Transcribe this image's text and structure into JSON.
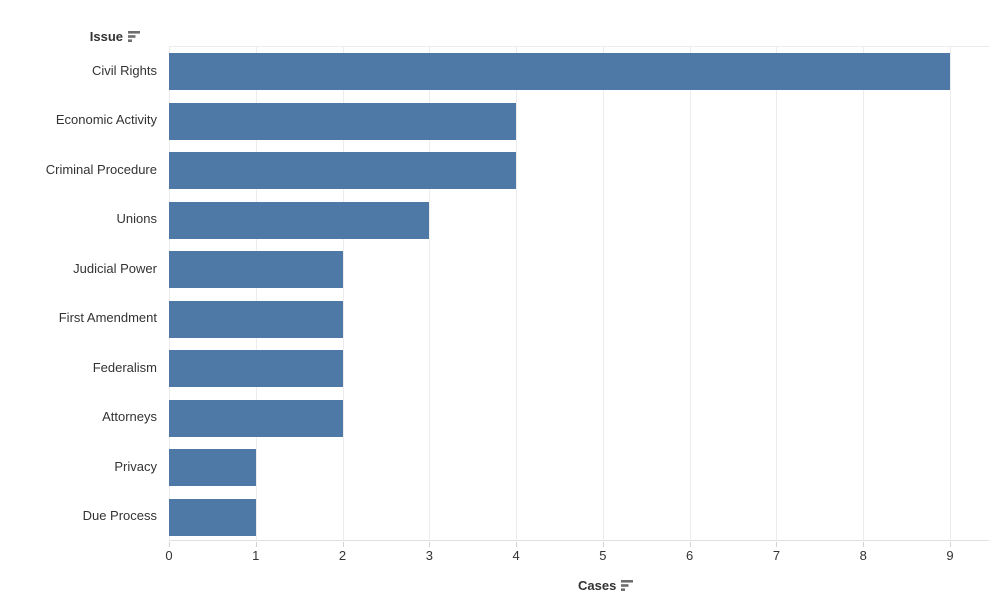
{
  "chart_data": {
    "type": "bar",
    "orientation": "horizontal",
    "row_header": "Issue",
    "axis_label": "Cases",
    "categories": [
      "Civil Rights",
      "Economic Activity",
      "Criminal Procedure",
      "Unions",
      "Judicial Power",
      "First Amendment",
      "Federalism",
      "Attorneys",
      "Privacy",
      "Due Process"
    ],
    "values": [
      9,
      4,
      4,
      3,
      2,
      2,
      2,
      2,
      1,
      1
    ],
    "x_ticks": [
      0,
      1,
      2,
      3,
      4,
      5,
      6,
      7,
      8,
      9
    ],
    "xlim": [
      0,
      9.45
    ],
    "grid": true,
    "legend": "none",
    "sort_state": "sorted-descending"
  },
  "colors": {
    "bar": "#4e79a7",
    "gridline": "#ececec",
    "axis_line": "#e0e0e0",
    "tick": "#d2d2d2",
    "text": "#333333",
    "icon": "#6e6e6e",
    "background": "#ffffff"
  },
  "icons": {
    "row_header_sort": "sort-descending-icon",
    "axis_sort": "sort-descending-icon"
  }
}
